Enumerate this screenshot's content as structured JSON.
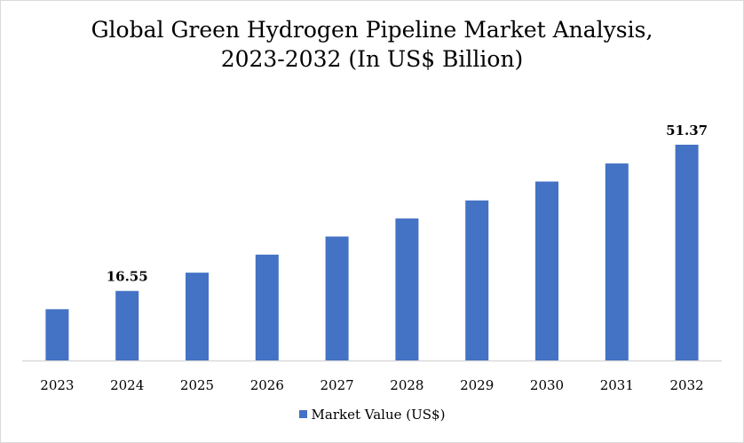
{
  "chart_data": {
    "type": "bar",
    "title_lines": [
      "Global Green Hydrogen Pipeline Market Analysis,",
      "2023-2032 (In US$ Billion)"
    ],
    "categories": [
      "2023",
      "2024",
      "2025",
      "2026",
      "2027",
      "2028",
      "2029",
      "2030",
      "2031",
      "2032"
    ],
    "series": [
      {
        "name": "Market Value (US$)",
        "values": [
          12.2,
          16.55,
          20.9,
          25.2,
          29.5,
          33.8,
          38.1,
          42.6,
          46.9,
          51.37
        ],
        "color": "#4472C4"
      }
    ],
    "data_labels": [
      {
        "category": "2024",
        "text": "16.55"
      },
      {
        "category": "2032",
        "text": "51.37"
      }
    ],
    "xlabel": "",
    "ylabel": "",
    "ylim": [
      0,
      55
    ],
    "y_axis_visible": false,
    "grid": false,
    "legend": "bottom"
  }
}
